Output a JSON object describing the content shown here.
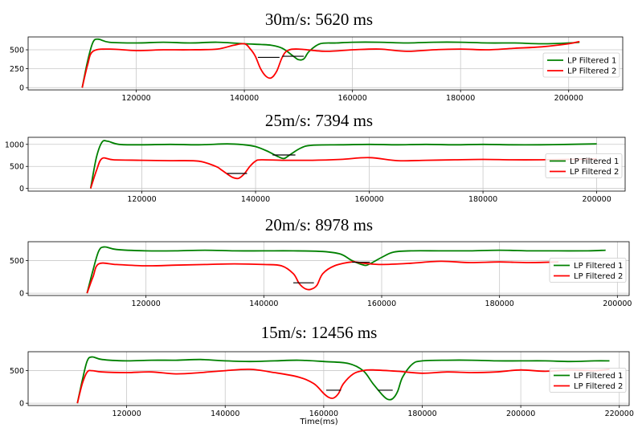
{
  "chart_data": [
    {
      "type": "line",
      "title": "30m/s: 5620 ms",
      "xlabel": "",
      "ylabel": "",
      "xlim": [
        100000,
        210000
      ],
      "ylim": [
        -30,
        670
      ],
      "xticks": [
        120000,
        140000,
        160000,
        180000,
        200000
      ],
      "yticks": [
        0,
        250,
        500
      ],
      "grid": true,
      "legend_position": "right",
      "series": [
        {
          "name": "LP Filtered 1",
          "color": "#008000",
          "x": [
            110000,
            111000,
            112000,
            113000,
            115000,
            120000,
            125000,
            130000,
            135000,
            140000,
            143000,
            145000,
            147000,
            149000,
            150000,
            151000,
            152000,
            154000,
            157000,
            160000,
            165000,
            170000,
            175000,
            180000,
            185000,
            190000,
            195000,
            200000,
            202000
          ],
          "y": [
            0,
            350,
            600,
            640,
            600,
            590,
            600,
            590,
            600,
            580,
            570,
            560,
            520,
            420,
            370,
            380,
            480,
            580,
            590,
            600,
            600,
            590,
            600,
            600,
            590,
            590,
            580,
            590,
            600
          ]
        },
        {
          "name": "LP Filtered 2",
          "color": "#ff0000",
          "x": [
            110000,
            111000,
            112000,
            115000,
            120000,
            125000,
            130000,
            135000,
            138000,
            140000,
            141000,
            142000,
            143000,
            144000,
            145000,
            146000,
            147000,
            148000,
            150000,
            155000,
            160000,
            165000,
            170000,
            175000,
            180000,
            185000,
            190000,
            195000,
            200000,
            202000
          ],
          "y": [
            0,
            300,
            480,
            510,
            490,
            500,
            500,
            510,
            560,
            580,
            520,
            420,
            250,
            150,
            130,
            220,
            400,
            490,
            510,
            480,
            500,
            510,
            480,
            500,
            510,
            500,
            520,
            540,
            580,
            610
          ]
        }
      ],
      "annotations": [
        {
          "type": "hline",
          "x": [
            142500,
            146500
          ],
          "y": 400
        },
        {
          "type": "hline",
          "x": [
            147000,
            151000
          ],
          "y": 415
        }
      ]
    },
    {
      "type": "line",
      "title": "25m/s: 7394 ms",
      "xlabel": "",
      "ylabel": "",
      "xlim": [
        100000,
        205000
      ],
      "ylim": [
        -60,
        1160
      ],
      "xticks": [
        120000,
        140000,
        160000,
        180000,
        200000
      ],
      "yticks": [
        0,
        500,
        1000
      ],
      "grid": true,
      "legend_position": "right",
      "series": [
        {
          "name": "LP Filtered 1",
          "color": "#008000",
          "x": [
            111000,
            112000,
            113000,
            114000,
            116000,
            120000,
            125000,
            130000,
            135000,
            138000,
            140000,
            142000,
            144000,
            145000,
            146000,
            148000,
            150000,
            155000,
            160000,
            165000,
            170000,
            175000,
            180000,
            185000,
            190000,
            195000,
            200000
          ],
          "y": [
            0,
            700,
            1050,
            1070,
            1000,
            990,
            1000,
            990,
            1010,
            990,
            950,
            850,
            720,
            680,
            760,
            920,
            980,
            990,
            1000,
            990,
            1000,
            990,
            1000,
            990,
            990,
            1000,
            1010
          ]
        },
        {
          "name": "LP Filtered 2",
          "color": "#ff0000",
          "x": [
            111000,
            112000,
            113000,
            115000,
            120000,
            125000,
            130000,
            133000,
            134000,
            135000,
            136000,
            137000,
            138000,
            139000,
            140000,
            141000,
            145000,
            150000,
            155000,
            160000,
            165000,
            170000,
            175000,
            180000,
            185000,
            190000,
            195000,
            200000
          ],
          "y": [
            0,
            400,
            680,
            650,
            640,
            630,
            620,
            500,
            420,
            330,
            250,
            230,
            330,
            500,
            620,
            650,
            640,
            640,
            660,
            700,
            630,
            640,
            650,
            660,
            650,
            650,
            660,
            670
          ]
        }
      ],
      "annotations": [
        {
          "type": "hline",
          "x": [
            135000,
            138500
          ],
          "y": 340
        },
        {
          "type": "hline",
          "x": [
            143000,
            147000
          ],
          "y": 760
        }
      ]
    },
    {
      "type": "line",
      "title": "20m/s: 8978 ms",
      "xlabel": "",
      "ylabel": "",
      "xlim": [
        100000,
        202000
      ],
      "ylim": [
        -35,
        790
      ],
      "xticks": [
        120000,
        140000,
        160000,
        180000,
        200000
      ],
      "yticks": [
        0,
        500
      ],
      "grid": true,
      "legend_position": "right",
      "series": [
        {
          "name": "LP Filtered 1",
          "color": "#008000",
          "x": [
            110000,
            111000,
            112000,
            113000,
            115000,
            120000,
            125000,
            130000,
            135000,
            140000,
            145000,
            150000,
            153000,
            155000,
            157000,
            158000,
            160000,
            162000,
            165000,
            170000,
            175000,
            180000,
            185000,
            190000,
            195000,
            198000
          ],
          "y": [
            0,
            350,
            650,
            710,
            670,
            650,
            650,
            660,
            650,
            650,
            650,
            640,
            600,
            500,
            430,
            450,
            550,
            630,
            650,
            650,
            650,
            660,
            650,
            650,
            650,
            660
          ]
        },
        {
          "name": "LP Filtered 2",
          "color": "#ff0000",
          "x": [
            110000,
            111000,
            112000,
            115000,
            120000,
            125000,
            130000,
            135000,
            140000,
            143000,
            145000,
            146000,
            147000,
            148000,
            149000,
            150000,
            152000,
            155000,
            157000,
            160000,
            165000,
            170000,
            175000,
            180000,
            185000,
            190000
          ],
          "y": [
            0,
            250,
            450,
            440,
            420,
            430,
            440,
            450,
            440,
            420,
            300,
            150,
            70,
            60,
            120,
            300,
            420,
            480,
            460,
            440,
            460,
            490,
            470,
            480,
            470,
            480
          ]
        }
      ],
      "annotations": [
        {
          "type": "hline",
          "x": [
            145000,
            148500
          ],
          "y": 160
        },
        {
          "type": "hline",
          "x": [
            155000,
            158000
          ],
          "y": 475
        }
      ]
    },
    {
      "type": "line",
      "title": "15m/s: 12456 ms",
      "xlabel": "Time(ms)",
      "ylabel": "",
      "xlim": [
        100000,
        222000
      ],
      "ylim": [
        -35,
        790
      ],
      "xticks": [
        120000,
        140000,
        160000,
        180000,
        200000,
        220000
      ],
      "yticks": [
        0,
        500
      ],
      "grid": true,
      "legend_position": "right",
      "series": [
        {
          "name": "LP Filtered 1",
          "color": "#008000",
          "x": [
            110000,
            111000,
            112000,
            113000,
            115000,
            120000,
            125000,
            130000,
            135000,
            140000,
            145000,
            150000,
            155000,
            160000,
            165000,
            168000,
            170000,
            172000,
            173000,
            174000,
            175000,
            176000,
            178000,
            180000,
            185000,
            190000,
            195000,
            200000,
            205000,
            210000,
            215000,
            218000
          ],
          "y": [
            0,
            350,
            650,
            710,
            670,
            650,
            660,
            660,
            670,
            650,
            640,
            650,
            660,
            640,
            610,
            500,
            300,
            120,
            60,
            70,
            180,
            400,
            600,
            650,
            660,
            660,
            650,
            650,
            650,
            640,
            650,
            650
          ]
        },
        {
          "name": "LP Filtered 2",
          "color": "#ff0000",
          "x": [
            110000,
            111000,
            112000,
            113000,
            115000,
            120000,
            125000,
            130000,
            135000,
            140000,
            145000,
            150000,
            155000,
            158000,
            160000,
            161000,
            162000,
            163000,
            164000,
            166000,
            168000,
            170000,
            175000,
            180000,
            185000,
            190000,
            195000,
            200000,
            205000,
            210000,
            215000,
            218000
          ],
          "y": [
            0,
            300,
            480,
            500,
            480,
            470,
            480,
            450,
            470,
            500,
            520,
            470,
            400,
            300,
            150,
            90,
            80,
            150,
            300,
            450,
            500,
            510,
            490,
            460,
            480,
            470,
            480,
            510,
            490,
            510,
            500,
            520
          ]
        }
      ],
      "annotations": [
        {
          "type": "hline",
          "x": [
            160500,
            163500
          ],
          "y": 200
        },
        {
          "type": "hline",
          "x": [
            171000,
            174000
          ],
          "y": 200
        }
      ]
    }
  ]
}
